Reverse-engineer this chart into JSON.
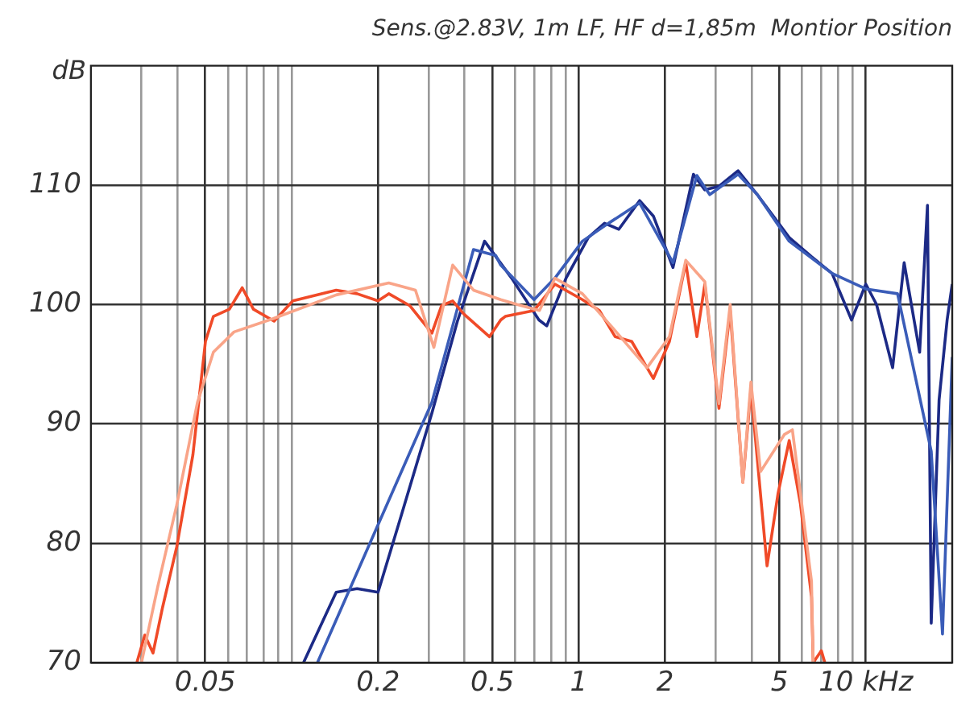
{
  "chart_data": {
    "type": "line",
    "title": "Sens.@2.83V, 1m LF, HF d=1,85m  Montior Position",
    "ylabel": "dB",
    "xlim": [
      0.02,
      20
    ],
    "ylim": [
      70,
      120
    ],
    "xticks": [
      {
        "value": 0.03,
        "label": null
      },
      {
        "value": 0.04,
        "label": null
      },
      {
        "value": 0.05,
        "label": "0.05"
      },
      {
        "value": 0.06,
        "label": null
      },
      {
        "value": 0.07,
        "label": null
      },
      {
        "value": 0.08,
        "label": null
      },
      {
        "value": 0.09,
        "label": null
      },
      {
        "value": 0.1,
        "label": null
      },
      {
        "value": 0.2,
        "label": "0.2"
      },
      {
        "value": 0.3,
        "label": null
      },
      {
        "value": 0.4,
        "label": null
      },
      {
        "value": 0.5,
        "label": "0.5"
      },
      {
        "value": 0.6,
        "label": null
      },
      {
        "value": 0.7,
        "label": null
      },
      {
        "value": 0.8,
        "label": null
      },
      {
        "value": 0.9,
        "label": null
      },
      {
        "value": 1,
        "label": "1"
      },
      {
        "value": 2,
        "label": "2"
      },
      {
        "value": 3,
        "label": null
      },
      {
        "value": 4,
        "label": null
      },
      {
        "value": 5,
        "label": "5"
      },
      {
        "value": 6,
        "label": null
      },
      {
        "value": 7,
        "label": null
      },
      {
        "value": 8,
        "label": null
      },
      {
        "value": 9,
        "label": null
      },
      {
        "value": 10,
        "label": "10 kHz"
      }
    ],
    "yticks": [
      70,
      80,
      90,
      100,
      110
    ],
    "log": "x",
    "grid": true,
    "legend": false,
    "marker": "none",
    "line_style": "solid",
    "series": [
      {
        "color": "#f9a488",
        "x": [
          0.03,
          0.0342,
          0.0398,
          0.047,
          0.0534,
          0.063,
          0.086,
          0.143,
          0.218,
          0.27,
          0.313,
          0.364,
          0.43,
          0.535,
          0.61,
          0.73,
          0.826,
          1.03,
          1.34,
          1.73,
          2.07,
          2.36,
          2.75,
          3.08,
          3.37,
          3.73,
          3.98,
          4.3,
          5.2,
          5.55,
          6.47,
          6.56
        ],
        "values": [
          70,
          76.4,
          83.2,
          91.8,
          96,
          97.7,
          98.8,
          100.8,
          101.8,
          101.2,
          96.4,
          103.3,
          101.2,
          100.4,
          100,
          99.5,
          102.2,
          100.9,
          97.8,
          94.7,
          97.3,
          103.7,
          101.9,
          91.7,
          100,
          85.1,
          93.5,
          86,
          89.1,
          89.5,
          76.8,
          70
        ]
      },
      {
        "color": "#f04a28",
        "x": [
          0.0289,
          0.0308,
          0.0329,
          0.0355,
          0.0398,
          0.0453,
          0.0501,
          0.0534,
          0.0607,
          0.0673,
          0.0736,
          0.0869,
          0.101,
          0.143,
          0.169,
          0.2,
          0.218,
          0.258,
          0.308,
          0.333,
          0.364,
          0.398,
          0.489,
          0.535,
          0.555,
          0.699,
          0.826,
          1.03,
          1.18,
          1.34,
          1.53,
          1.73,
          1.82,
          2.07,
          2.36,
          2.58,
          2.75,
          3.08,
          3.37,
          3.73,
          3.98,
          4.53,
          4.95,
          5.41,
          5.92,
          6.47,
          6.56,
          7,
          7.2
        ],
        "values": [
          70,
          72.3,
          70.8,
          74.6,
          79.7,
          87.4,
          96.9,
          99,
          99.6,
          101.4,
          99.6,
          98.6,
          100.3,
          101.2,
          100.9,
          100.3,
          100.9,
          99.9,
          97.6,
          99.9,
          100.3,
          99.2,
          97.3,
          98.7,
          99,
          99.5,
          101.7,
          100.4,
          99.5,
          97.3,
          96.9,
          94.7,
          93.8,
          96.9,
          103.5,
          97.3,
          101.7,
          91.3,
          99.5,
          85.1,
          92.9,
          78.1,
          84.2,
          88.6,
          83.3,
          75.5,
          70,
          71,
          70
        ]
      },
      {
        "color": "#3a5cb8",
        "x": [
          0.123,
          0.308,
          0.43,
          0.514,
          0.535,
          0.699,
          0.826,
          1.03,
          1.27,
          1.63,
          2.13,
          2.58,
          2.86,
          3.59,
          4.19,
          5.41,
          7.63,
          10,
          12.9,
          16.9,
          18.5,
          20
        ],
        "values": [
          70,
          91.8,
          104.6,
          104.1,
          103.3,
          100.4,
          102.2,
          105.3,
          106.8,
          108.5,
          103.5,
          110.8,
          109.2,
          110.9,
          109.2,
          105.3,
          102.6,
          101.3,
          100.9,
          87.7,
          72.4,
          95.6
        ]
      },
      {
        "color": "#1c2a86",
        "x": [
          0.11,
          0.143,
          0.169,
          0.2,
          0.238,
          0.308,
          0.378,
          0.47,
          0.584,
          0.727,
          0.774,
          0.903,
          1.08,
          1.23,
          1.38,
          1.63,
          1.82,
          2.13,
          2.51,
          2.75,
          3.08,
          3.59,
          4.19,
          5.41,
          6.47,
          7.63,
          8.92,
          10,
          10.9,
          12.4,
          13.6,
          15.4,
          16.4,
          16.9,
          18,
          19.2,
          20
        ],
        "values": [
          70,
          75.9,
          76.2,
          75.9,
          81.9,
          90.9,
          98.6,
          105.3,
          102.2,
          98.7,
          98.2,
          102.2,
          105.6,
          106.8,
          106.3,
          108.7,
          107.4,
          103.1,
          110.9,
          109.6,
          109.9,
          111.2,
          109.2,
          105.6,
          104,
          102.6,
          98.7,
          101.7,
          100,
          94.7,
          103.5,
          96,
          108.3,
          73.3,
          92,
          98.7,
          101.7
        ]
      }
    ]
  }
}
